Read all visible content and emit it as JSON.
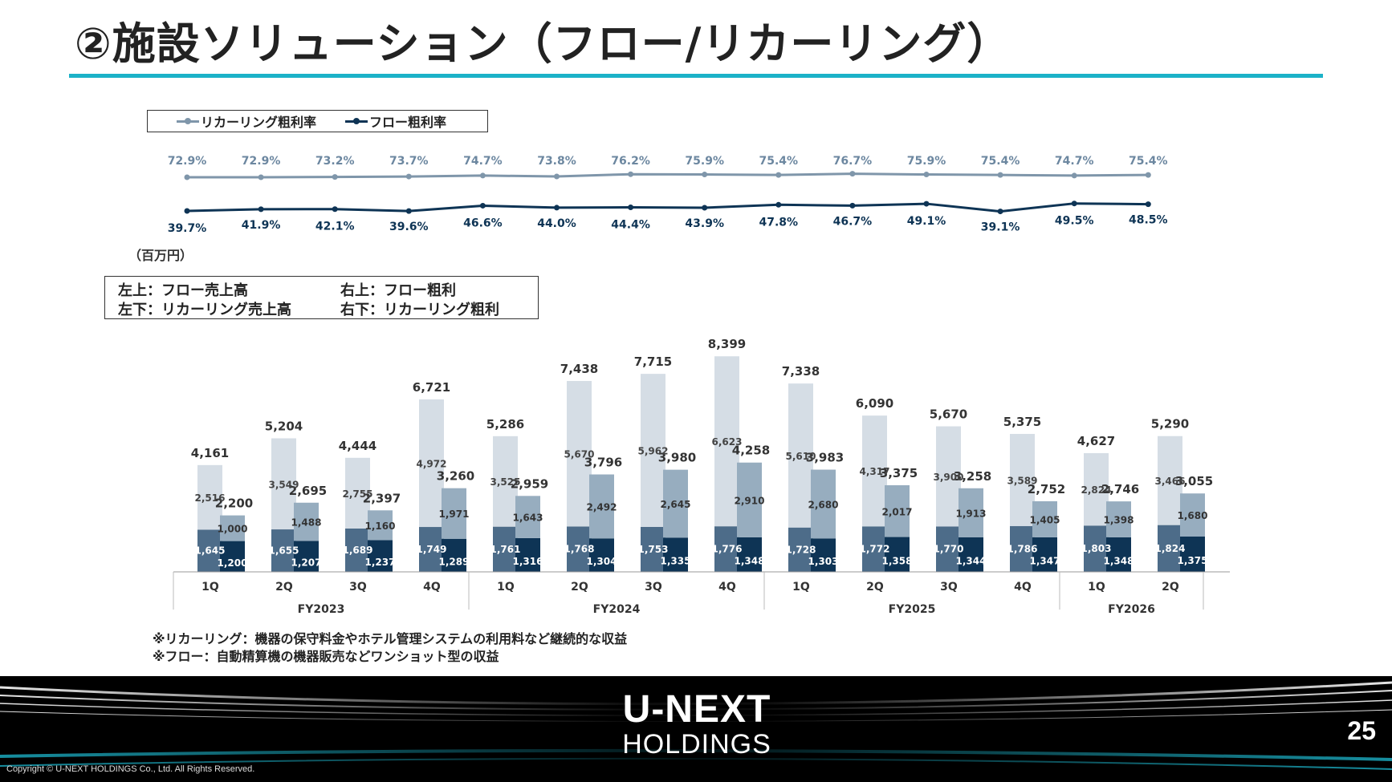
{
  "page": {
    "title": "②施設ソリューション（フロー/リカーリング）",
    "unit": "（百万円）",
    "notes": [
      "※リカーリング：機器の保守料金やホテル管理システムの利用料など継続的な収益",
      "※フロー：自動精算機の機器販売などワンショット型の収益"
    ],
    "page_number": "25",
    "copyright": "Copyright © U-NEXT HOLDINGS Co., Ltd. All Rights Reserved.",
    "logo_top": "U-NEXT",
    "logo_bottom": "HOLDINGS"
  },
  "legend_rate": [
    {
      "label": "リカーリング粗利率",
      "color": "#7f96aa"
    },
    {
      "label": "フロー粗利率",
      "color": "#0e3455"
    }
  ],
  "legend_bars": {
    "top_left": "左上：フロー売上高",
    "top_right": "右上：フロー粗利",
    "bottom_left": "左下：リカーリング売上高",
    "bottom_right": "右下：リカーリング粗利"
  },
  "colors": {
    "flow_sales": "#d5dde5",
    "flow_gp": "#97adbf",
    "recurring_sales": "#4d6c89",
    "recurring_gp": "#0e3455",
    "accent": "#1cb2c8"
  },
  "chart_data": {
    "type": "bar",
    "quarters": [
      "1Q",
      "2Q",
      "3Q",
      "4Q",
      "1Q",
      "2Q",
      "3Q",
      "4Q",
      "1Q",
      "2Q",
      "3Q",
      "4Q",
      "1Q",
      "2Q"
    ],
    "fiscal_years": [
      {
        "label": "FY2023",
        "count": 4
      },
      {
        "label": "FY2024",
        "count": 4
      },
      {
        "label": "FY2025",
        "count": 4
      },
      {
        "label": "FY2026",
        "count": 2
      }
    ],
    "sales_total": [
      4161,
      5204,
      4444,
      6721,
      5286,
      7438,
      7715,
      8399,
      7338,
      6090,
      5670,
      5375,
      4627,
      5290
    ],
    "gp_total": [
      2200,
      2695,
      2397,
      3260,
      2959,
      3796,
      3980,
      4258,
      3983,
      3375,
      3258,
      2752,
      2746,
      3055
    ],
    "flow_sales": [
      2516,
      3549,
      2755,
      4972,
      3525,
      5670,
      5962,
      6623,
      5610,
      4317,
      3900,
      3589,
      2824,
      3466
    ],
    "recurring_sales": [
      1645,
      1655,
      1689,
      1749,
      1761,
      1768,
      1753,
      1776,
      1728,
      1772,
      1770,
      1786,
      1803,
      1824
    ],
    "flow_gp": [
      1000,
      1488,
      1160,
      1971,
      1643,
      2492,
      2645,
      2910,
      2680,
      2017,
      1913,
      1405,
      1398,
      1680
    ],
    "recurring_gp": [
      1200,
      1207,
      1237,
      1289,
      1316,
      1304,
      1335,
      1348,
      1303,
      1358,
      1344,
      1347,
      1348,
      1375
    ],
    "recurring_gp_rate": [
      "72.9%",
      "72.9%",
      "73.2%",
      "73.7%",
      "74.7%",
      "73.8%",
      "76.2%",
      "75.9%",
      "75.4%",
      "76.7%",
      "75.9%",
      "75.4%",
      "74.7%",
      "75.4%"
    ],
    "flow_gp_rate": [
      "39.7%",
      "41.9%",
      "42.1%",
      "39.6%",
      "46.6%",
      "44.0%",
      "44.4%",
      "43.9%",
      "47.8%",
      "46.7%",
      "49.1%",
      "39.1%",
      "49.5%",
      "48.5%"
    ]
  }
}
